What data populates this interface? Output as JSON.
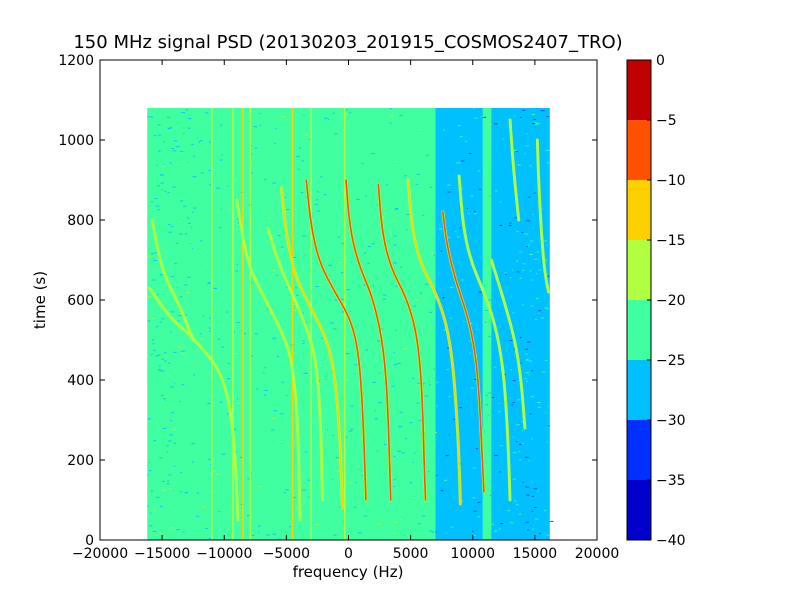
{
  "chart_data": {
    "type": "heatmap",
    "title": "150 MHz signal PSD (20130203_201915_COSMOS2407_TRO)",
    "xlabel": "frequency (Hz)",
    "ylabel": "time (s)",
    "xlim": [
      -20000,
      20000
    ],
    "ylim": [
      0,
      1200
    ],
    "x_ticks": [
      -20000,
      -15000,
      -10000,
      -5000,
      0,
      5000,
      10000,
      15000,
      20000
    ],
    "y_ticks": [
      0,
      200,
      400,
      600,
      800,
      1000,
      1200
    ],
    "data_extent": {
      "x": [
        -16200,
        16200
      ],
      "y": [
        0,
        1080
      ]
    },
    "grid": false,
    "colorbar": {
      "levels": [
        -40,
        -35,
        -30,
        -25,
        -20,
        -15,
        -10,
        -5,
        0
      ],
      "labels": [
        "−40",
        "−35",
        "−30",
        "−25",
        "−20",
        "−15",
        "−10",
        "−5",
        "0"
      ],
      "colors": [
        "#0000cc",
        "#0030ff",
        "#00c0ff",
        "#40ffa0",
        "#b0ff40",
        "#ffd000",
        "#ff5000",
        "#c00000"
      ]
    },
    "background_bands": [
      {
        "x0": -16200,
        "x1": 7000,
        "level": -22.5
      },
      {
        "x0": 7000,
        "x1": 16200,
        "level": -27.5
      },
      {
        "x0": 10800,
        "x1": 11500,
        "level": -22.5
      }
    ],
    "vertical_lines": [
      {
        "x": -11000,
        "t": [
          0,
          1080
        ],
        "level": -17.5
      },
      {
        "x": -9300,
        "t": [
          0,
          1080
        ],
        "level": -17.5
      },
      {
        "x": -8500,
        "t": [
          0,
          1080
        ],
        "level": -12.5
      },
      {
        "x": -7900,
        "t": [
          0,
          1080
        ],
        "level": -17.5
      },
      {
        "x": -4500,
        "t": [
          0,
          1080
        ],
        "level": -12.5
      },
      {
        "x": -3000,
        "t": [
          0,
          1080
        ],
        "level": -17.5
      },
      {
        "x": -300,
        "t": [
          0,
          1080
        ],
        "level": -17.5
      }
    ],
    "traces": [
      {
        "level": -17.5,
        "points": [
          [
            -16000,
            630
          ],
          [
            -14500,
            560
          ],
          [
            -13000,
            520
          ],
          [
            -11800,
            480
          ],
          [
            -10500,
            430
          ],
          [
            -9800,
            370
          ],
          [
            -9400,
            300
          ],
          [
            -9100,
            200
          ],
          [
            -8900,
            50
          ]
        ]
      },
      {
        "level": -17.5,
        "points": [
          [
            -15800,
            800
          ],
          [
            -15200,
            700
          ],
          [
            -14500,
            640
          ],
          [
            -13500,
            580
          ],
          [
            -12500,
            500
          ]
        ]
      },
      {
        "level": -17.5,
        "points": [
          [
            -9000,
            850
          ],
          [
            -8200,
            700
          ],
          [
            -7200,
            630
          ],
          [
            -6000,
            560
          ],
          [
            -5100,
            500
          ],
          [
            -4600,
            450
          ],
          [
            -4200,
            350
          ],
          [
            -4000,
            200
          ],
          [
            -3900,
            50
          ]
        ]
      },
      {
        "level": -17.5,
        "points": [
          [
            -6500,
            780
          ],
          [
            -5500,
            680
          ],
          [
            -4000,
            580
          ],
          [
            -2800,
            480
          ],
          [
            -2400,
            380
          ],
          [
            -2200,
            250
          ],
          [
            -2100,
            100
          ]
        ]
      },
      {
        "level": -12.5,
        "points": [
          [
            -5400,
            880
          ],
          [
            -5000,
            760
          ],
          [
            -4300,
            660
          ],
          [
            -3200,
            590
          ],
          [
            -2000,
            520
          ],
          [
            -1300,
            450
          ],
          [
            -900,
            350
          ],
          [
            -600,
            200
          ],
          [
            -500,
            80
          ]
        ]
      },
      {
        "level": -7.5,
        "points": [
          [
            -3400,
            900
          ],
          [
            -3000,
            780
          ],
          [
            -2300,
            690
          ],
          [
            -1100,
            620
          ],
          [
            200,
            550
          ],
          [
            800,
            470
          ],
          [
            1100,
            350
          ],
          [
            1300,
            200
          ],
          [
            1400,
            100
          ]
        ]
      },
      {
        "level": -7.5,
        "points": [
          [
            -200,
            900
          ],
          [
            100,
            780
          ],
          [
            800,
            690
          ],
          [
            1900,
            610
          ],
          [
            2600,
            520
          ],
          [
            3000,
            420
          ],
          [
            3200,
            300
          ],
          [
            3300,
            200
          ],
          [
            3400,
            100
          ]
        ]
      },
      {
        "level": -7.5,
        "points": [
          [
            2400,
            890
          ],
          [
            2700,
            770
          ],
          [
            3400,
            680
          ],
          [
            4600,
            610
          ],
          [
            5400,
            530
          ],
          [
            5800,
            430
          ],
          [
            6000,
            300
          ],
          [
            6100,
            180
          ],
          [
            6200,
            100
          ]
        ]
      },
      {
        "level": -12.5,
        "points": [
          [
            4800,
            900
          ],
          [
            5100,
            780
          ],
          [
            5800,
            690
          ],
          [
            7000,
            620
          ],
          [
            7900,
            540
          ],
          [
            8400,
            440
          ],
          [
            8700,
            320
          ],
          [
            8900,
            200
          ],
          [
            9000,
            90
          ]
        ]
      },
      {
        "level": -7.5,
        "points": [
          [
            7600,
            820
          ],
          [
            7900,
            740
          ],
          [
            8600,
            650
          ],
          [
            9600,
            560
          ],
          [
            10200,
            470
          ],
          [
            10500,
            370
          ],
          [
            10700,
            250
          ],
          [
            10900,
            120
          ]
        ]
      },
      {
        "level": -17.5,
        "points": [
          [
            8900,
            910
          ],
          [
            9200,
            790
          ],
          [
            9800,
            700
          ],
          [
            10900,
            620
          ],
          [
            11800,
            540
          ],
          [
            12400,
            440
          ],
          [
            12700,
            330
          ],
          [
            12900,
            200
          ],
          [
            13000,
            100
          ]
        ]
      },
      {
        "level": -17.5,
        "points": [
          [
            11500,
            700
          ],
          [
            12500,
            600
          ],
          [
            13400,
            500
          ],
          [
            13900,
            400
          ],
          [
            14200,
            280
          ]
        ]
      },
      {
        "level": -17.5,
        "points": [
          [
            15200,
            1000
          ],
          [
            15300,
            900
          ],
          [
            15500,
            780
          ],
          [
            15700,
            700
          ],
          [
            15900,
            650
          ],
          [
            16100,
            620
          ]
        ]
      },
      {
        "level": -17.5,
        "points": [
          [
            13000,
            1050
          ],
          [
            13300,
            920
          ],
          [
            13700,
            800
          ]
        ]
      }
    ]
  }
}
